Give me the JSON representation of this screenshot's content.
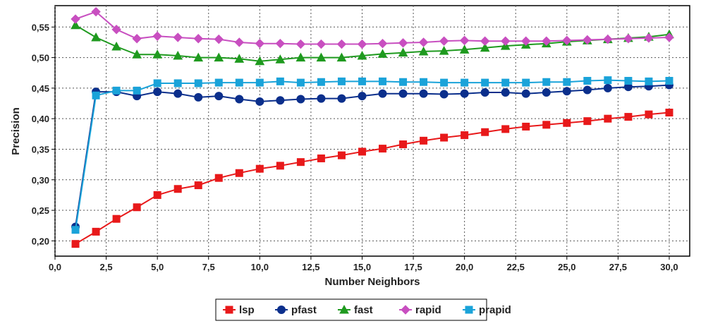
{
  "chart_data": {
    "type": "line",
    "xlabel": "Number Neighbors",
    "ylabel": "Precision",
    "xlim": [
      0,
      31
    ],
    "ylim": [
      0.175,
      0.585
    ],
    "x_ticks": [
      "0,0",
      "2,5",
      "5,0",
      "7,5",
      "10,0",
      "12,5",
      "15,0",
      "17,5",
      "20,0",
      "22,5",
      "25,0",
      "27,5",
      "30,0"
    ],
    "x_tick_values": [
      0,
      2.5,
      5,
      7.5,
      10,
      12.5,
      15,
      17.5,
      20,
      22.5,
      25,
      27.5,
      30
    ],
    "y_ticks": [
      "0,20",
      "0,25",
      "0,30",
      "0,35",
      "0,40",
      "0,45",
      "0,50",
      "0,55"
    ],
    "y_tick_values": [
      0.2,
      0.25,
      0.3,
      0.35,
      0.4,
      0.45,
      0.5,
      0.55
    ],
    "grid": true,
    "legend": "bottom",
    "x": [
      1,
      2,
      3,
      4,
      5,
      6,
      7,
      8,
      9,
      10,
      11,
      12,
      13,
      14,
      15,
      16,
      17,
      18,
      19,
      20,
      21,
      22,
      23,
      24,
      25,
      26,
      27,
      28,
      29,
      30
    ],
    "series": [
      {
        "name": "lsp",
        "color": "#e8191a",
        "marker": "square",
        "values": [
          0.195,
          0.215,
          0.236,
          0.255,
          0.275,
          0.285,
          0.291,
          0.303,
          0.311,
          0.318,
          0.323,
          0.329,
          0.335,
          0.34,
          0.346,
          0.351,
          0.358,
          0.364,
          0.369,
          0.373,
          0.378,
          0.383,
          0.387,
          0.39,
          0.393,
          0.396,
          0.4,
          0.403,
          0.407,
          0.41
        ]
      },
      {
        "name": "pfast",
        "color": "#0b2f8c",
        "marker": "circle",
        "values": [
          0.223,
          0.444,
          0.444,
          0.437,
          0.444,
          0.441,
          0.435,
          0.437,
          0.432,
          0.428,
          0.43,
          0.432,
          0.433,
          0.433,
          0.437,
          0.441,
          0.441,
          0.441,
          0.44,
          0.441,
          0.443,
          0.443,
          0.441,
          0.443,
          0.445,
          0.447,
          0.45,
          0.452,
          0.453,
          0.455
        ]
      },
      {
        "name": "fast",
        "color": "#1f9a1f",
        "marker": "triangle",
        "values": [
          0.553,
          0.533,
          0.518,
          0.505,
          0.505,
          0.503,
          0.5,
          0.5,
          0.498,
          0.494,
          0.497,
          0.5,
          0.5,
          0.5,
          0.503,
          0.506,
          0.508,
          0.51,
          0.511,
          0.513,
          0.516,
          0.519,
          0.521,
          0.523,
          0.526,
          0.528,
          0.53,
          0.532,
          0.534,
          0.538
        ]
      },
      {
        "name": "rapid",
        "color": "#c84fc0",
        "marker": "diamond",
        "values": [
          0.563,
          0.575,
          0.546,
          0.531,
          0.535,
          0.533,
          0.531,
          0.53,
          0.525,
          0.523,
          0.523,
          0.522,
          0.522,
          0.522,
          0.522,
          0.523,
          0.524,
          0.525,
          0.527,
          0.528,
          0.527,
          0.527,
          0.527,
          0.527,
          0.528,
          0.529,
          0.53,
          0.531,
          0.532,
          0.533
        ]
      },
      {
        "name": "prapid",
        "color": "#1aa3d9",
        "marker": "square",
        "values": [
          0.218,
          0.438,
          0.446,
          0.446,
          0.458,
          0.458,
          0.458,
          0.459,
          0.459,
          0.459,
          0.461,
          0.459,
          0.46,
          0.461,
          0.461,
          0.461,
          0.46,
          0.46,
          0.459,
          0.459,
          0.459,
          0.459,
          0.459,
          0.46,
          0.46,
          0.462,
          0.463,
          0.462,
          0.461,
          0.462
        ]
      }
    ]
  }
}
